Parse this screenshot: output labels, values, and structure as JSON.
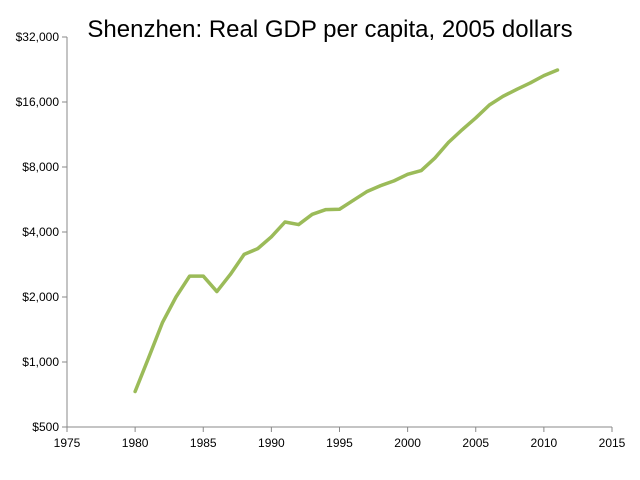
{
  "chart_data": {
    "type": "line",
    "title": "Shenzhen: Real GDP per capita, 2005 dollars",
    "xlabel": "",
    "ylabel": "",
    "y_scale": "log",
    "xlim": [
      1975,
      2015
    ],
    "ylim": [
      500,
      32000
    ],
    "x_ticks": [
      1975,
      1980,
      1985,
      1990,
      1995,
      2000,
      2005,
      2010,
      2015
    ],
    "x_tick_labels": [
      "1975",
      "1980",
      "1985",
      "1990",
      "1995",
      "2000",
      "2005",
      "2010",
      "2015"
    ],
    "y_ticks": [
      500,
      1000,
      2000,
      4000,
      8000,
      16000,
      32000
    ],
    "y_tick_labels": [
      "$500",
      "$1,000",
      "$2,000",
      "$4,000",
      "$8,000",
      "$16,000",
      "$32,000"
    ],
    "grid": false,
    "legend": "none",
    "line_color": "#9bbb59",
    "series": [
      {
        "x": [
          1980,
          1981,
          1982,
          1983,
          1984,
          1985,
          1986,
          1987,
          1988,
          1989,
          1990,
          1991,
          1992,
          1993,
          1994,
          1995,
          1996,
          1997,
          1998,
          1999,
          2000,
          2001,
          2002,
          2003,
          2004,
          2005,
          2006,
          2007,
          2008,
          2009,
          2010,
          2011
        ],
        "y": [
          730,
          1050,
          1520,
          2000,
          2500,
          2500,
          2120,
          2550,
          3150,
          3350,
          3800,
          4450,
          4330,
          4830,
          5080,
          5100,
          5600,
          6150,
          6550,
          6900,
          7400,
          7700,
          8800,
          10400,
          11900,
          13500,
          15500,
          17000,
          18300,
          19600,
          21200,
          22500
        ]
      }
    ]
  }
}
